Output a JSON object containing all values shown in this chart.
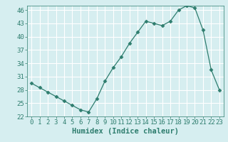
{
  "x": [
    0,
    1,
    2,
    3,
    4,
    5,
    6,
    7,
    8,
    9,
    10,
    11,
    12,
    13,
    14,
    15,
    16,
    17,
    18,
    19,
    20,
    21,
    22,
    23
  ],
  "y": [
    29.5,
    28.5,
    27.5,
    26.5,
    25.5,
    24.5,
    23.5,
    23.0,
    26.0,
    30.0,
    33.0,
    35.5,
    38.5,
    41.0,
    43.5,
    43.0,
    42.5,
    43.5,
    46.0,
    47.0,
    46.5,
    41.5,
    32.5,
    28.0
  ],
  "xlabel": "Humidex (Indice chaleur)",
  "ylim": [
    22,
    47
  ],
  "xlim": [
    -0.5,
    23.5
  ],
  "yticks": [
    22,
    25,
    28,
    31,
    34,
    37,
    40,
    43,
    46
  ],
  "xticks": [
    0,
    1,
    2,
    3,
    4,
    5,
    6,
    7,
    8,
    9,
    10,
    11,
    12,
    13,
    14,
    15,
    16,
    17,
    18,
    19,
    20,
    21,
    22,
    23
  ],
  "line_color": "#2e7d6e",
  "marker": "D",
  "marker_size": 2.5,
  "bg_color": "#d6eef0",
  "grid_color": "#ffffff",
  "tick_label_fontsize": 6.5,
  "xlabel_fontsize": 7.5
}
